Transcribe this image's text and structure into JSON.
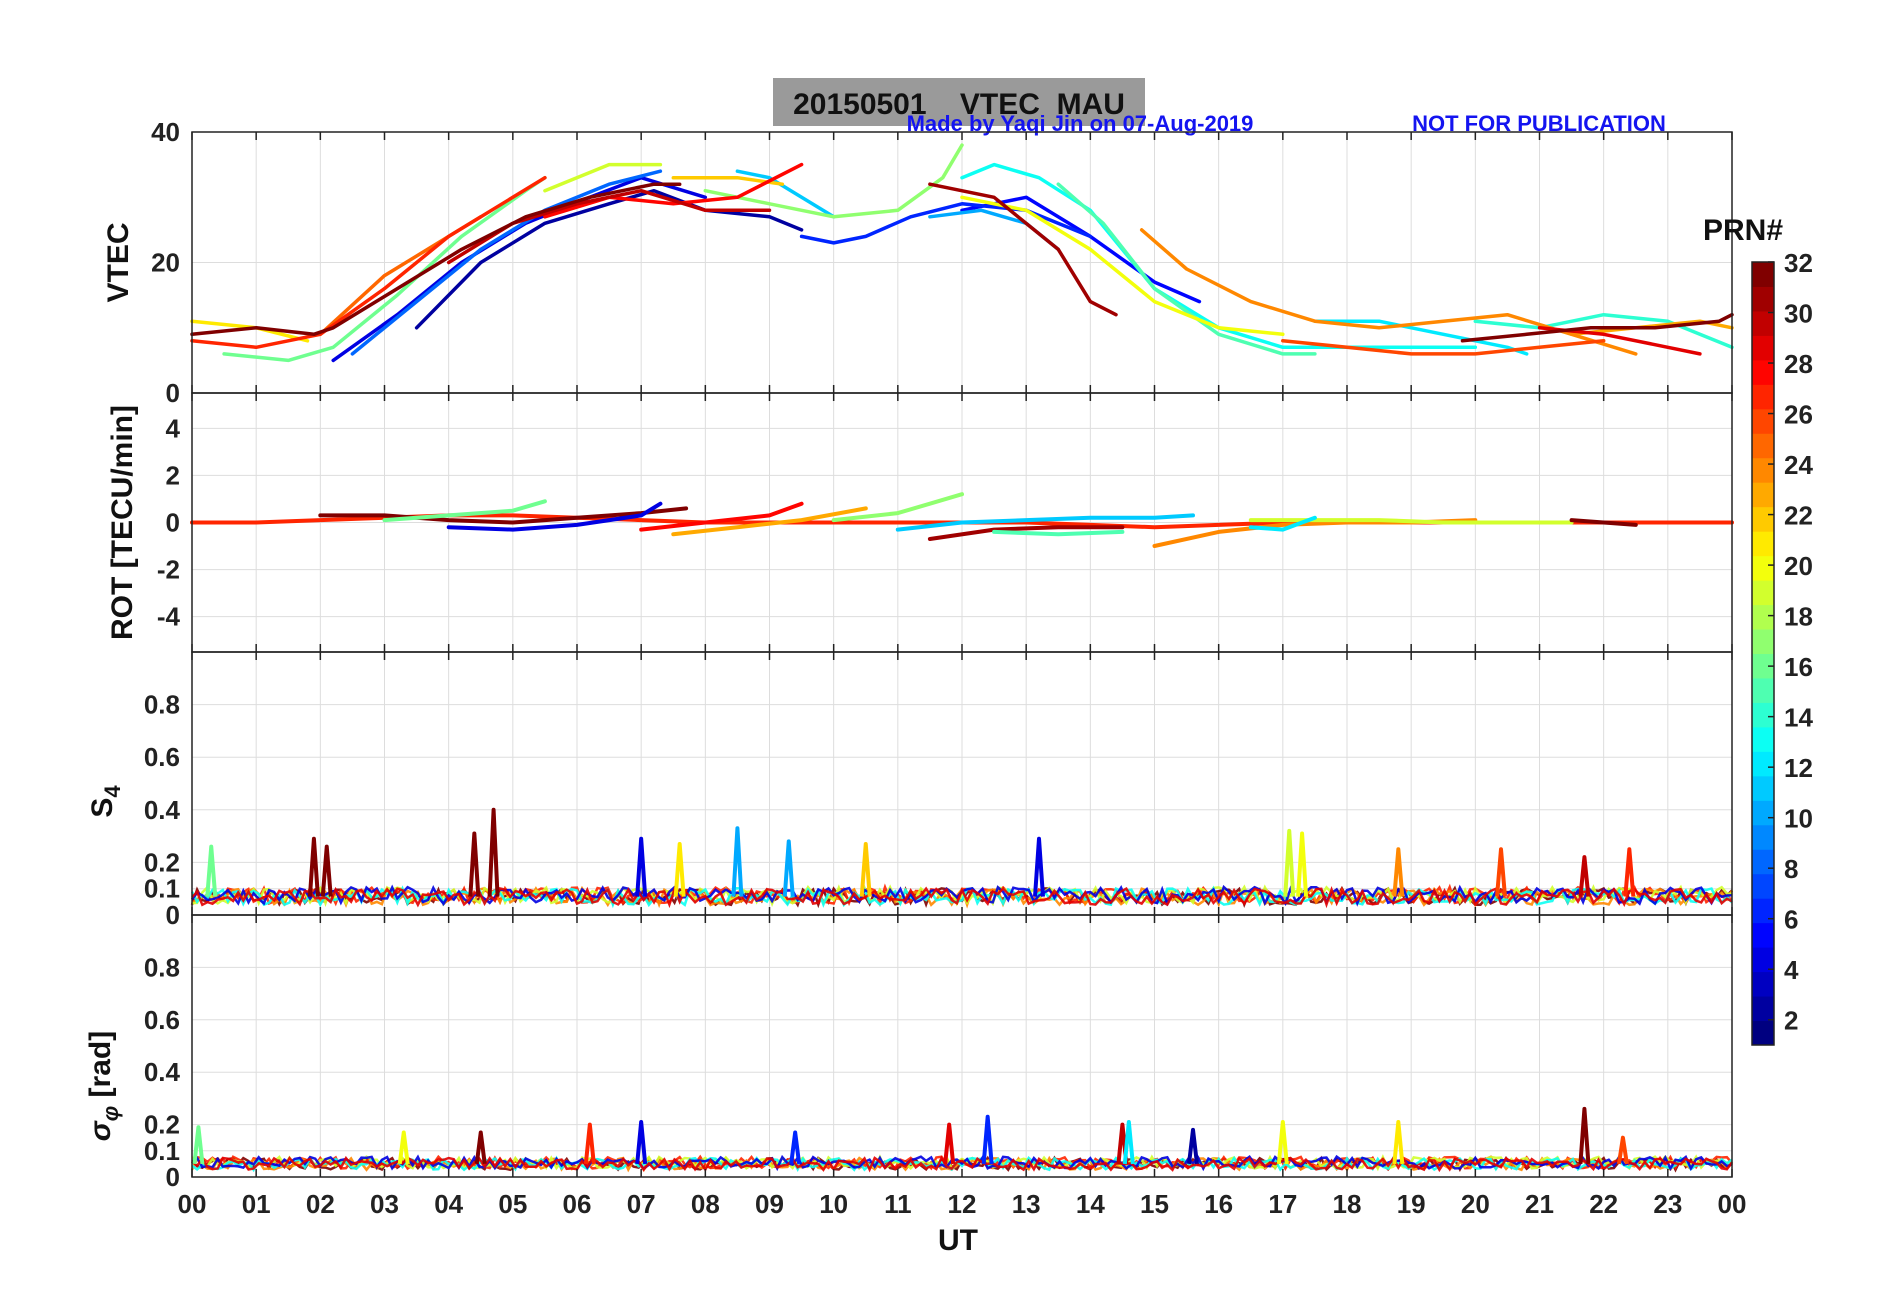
{
  "chart_data": {
    "type": "line",
    "title": "20150501    VTEC  MAU",
    "credit_left": "Made by Yaqi Jin on 07-Aug-2019",
    "credit_right": "NOT FOR PUBLICATION",
    "xlabel": "UT",
    "x_ticks": [
      "00",
      "01",
      "02",
      "03",
      "04",
      "05",
      "06",
      "07",
      "08",
      "09",
      "10",
      "11",
      "12",
      "13",
      "14",
      "15",
      "16",
      "17",
      "18",
      "19",
      "20",
      "21",
      "22",
      "23",
      "00"
    ],
    "xlim": [
      0,
      24
    ],
    "colorbar": {
      "label": "PRN#",
      "range": [
        1,
        32
      ],
      "ticks": [
        "2",
        "4",
        "6",
        "8",
        "10",
        "12",
        "14",
        "16",
        "18",
        "20",
        "22",
        "24",
        "26",
        "28",
        "30",
        "32"
      ],
      "colormap": "jet"
    },
    "panels": [
      {
        "id": "vtec",
        "ylabel": "VTEC",
        "ylim": [
          0,
          40
        ],
        "y_ticks": [
          "0",
          "20",
          "40"
        ],
        "series": [
          {
            "prn": 2,
            "x": [
              3.5,
              4.5,
              5.5,
              6.5,
              7.2,
              8.0,
              9.0,
              9.5
            ],
            "y": [
              10,
              20,
              26,
              29,
              31,
              28,
              27,
              25
            ]
          },
          {
            "prn": 4,
            "x": [
              2.2,
              3.2,
              4.2,
              5.2,
              6.2,
              7.0,
              8.0
            ],
            "y": [
              5,
              12,
              20,
              26,
              30,
              33,
              30
            ]
          },
          {
            "prn": 5,
            "x": [
              12.0,
              13.0,
              14.0,
              15.0,
              15.7
            ],
            "y": [
              28,
              30,
              24,
              17,
              14
            ]
          },
          {
            "prn": 6,
            "x": [
              9.5,
              10.0,
              10.5,
              11.2,
              12.0,
              13.0,
              14.0
            ],
            "y": [
              24,
              23,
              24,
              27,
              29,
              28,
              24
            ]
          },
          {
            "prn": 8,
            "x": [
              2.5,
              3.5,
              4.5,
              5.5,
              6.5,
              7.3
            ],
            "y": [
              6,
              14,
              22,
              28,
              32,
              34
            ]
          },
          {
            "prn": 10,
            "x": [
              11.5,
              12.3,
              13.0,
              13.5
            ],
            "y": [
              27,
              28,
              26,
              22
            ]
          },
          {
            "prn": 11,
            "x": [
              8.5,
              9.0,
              9.5,
              10.0
            ],
            "y": [
              34,
              33,
              30,
              27
            ]
          },
          {
            "prn": 12,
            "x": [
              17.5,
              18.5,
              19.5,
              20.5,
              20.8
            ],
            "y": [
              11,
              11,
              9,
              7,
              6
            ]
          },
          {
            "prn": 13,
            "x": [
              12.0,
              12.5,
              13.2,
              14.0,
              15.0,
              16.0,
              17.0,
              18.0,
              19.0,
              20.0
            ],
            "y": [
              33,
              35,
              33,
              28,
              16,
              10,
              7,
              7,
              7,
              7
            ]
          },
          {
            "prn": 14,
            "x": [
              20.0,
              21.0,
              22.0,
              23.0,
              24.0
            ],
            "y": [
              11,
              10,
              12,
              11,
              7
            ]
          },
          {
            "prn": 15,
            "x": [
              13.5,
              14.2,
              15.0,
              16.0,
              17.0,
              17.5
            ],
            "y": [
              32,
              26,
              16,
              9,
              6,
              6
            ]
          },
          {
            "prn": 16,
            "x": [
              0.5,
              1.5,
              2.2,
              3.2,
              4.2,
              5.2,
              5.5
            ],
            "y": [
              6,
              5,
              7,
              15,
              24,
              31,
              33
            ]
          },
          {
            "prn": 17,
            "x": [
              8.0,
              9.0,
              10.0,
              11.0,
              11.7,
              12.0
            ],
            "y": [
              31,
              29,
              27,
              28,
              33,
              38
            ]
          },
          {
            "prn": 19,
            "x": [
              5.5,
              6.5,
              7.3
            ],
            "y": [
              31,
              35,
              35
            ]
          },
          {
            "prn": 20,
            "x": [
              12.0,
              13.0,
              14.0,
              15.0,
              16.0,
              17.0
            ],
            "y": [
              30,
              28,
              22,
              14,
              10,
              9
            ]
          },
          {
            "prn": 21,
            "x": [
              0.0,
              1.0,
              1.8
            ],
            "y": [
              11,
              10,
              8
            ]
          },
          {
            "prn": 22,
            "x": [
              7.5,
              8.5,
              9.2
            ],
            "y": [
              33,
              33,
              32
            ]
          },
          {
            "prn": 23,
            "x": [
              21.5,
              22.5,
              23.5,
              24.0
            ],
            "y": [
              9,
              10,
              11,
              10
            ]
          },
          {
            "prn": 24,
            "x": [
              14.8,
              15.5,
              16.5,
              17.5,
              18.5,
              19.5,
              20.5,
              21.5,
              22.5
            ],
            "y": [
              25,
              19,
              14,
              11,
              10,
              11,
              12,
              9,
              6
            ]
          },
          {
            "prn": 25,
            "x": [
              2.0,
              3.0,
              4.0,
              4.5
            ],
            "y": [
              9,
              18,
              24,
              27
            ]
          },
          {
            "prn": 26,
            "x": [
              17.0,
              18.0,
              19.0,
              20.0,
              21.0,
              22.0
            ],
            "y": [
              8,
              7,
              6,
              6,
              7,
              8
            ]
          },
          {
            "prn": 27,
            "x": [
              0.0,
              1.0,
              2.0,
              3.0,
              4.0,
              5.0,
              5.5
            ],
            "y": [
              8,
              7,
              9,
              16,
              24,
              30,
              33
            ]
          },
          {
            "prn": 28,
            "x": [
              5.5,
              6.5,
              7.5,
              8.5,
              9.5
            ],
            "y": [
              27,
              30,
              29,
              30,
              35
            ]
          },
          {
            "prn": 29,
            "x": [
              21.0,
              22.0,
              23.0,
              23.5
            ],
            "y": [
              10,
              9,
              7,
              6
            ]
          },
          {
            "prn": 30,
            "x": [
              4.0,
              5.0,
              6.0,
              7.0,
              8.0,
              9.0
            ],
            "y": [
              20,
              26,
              29,
              31,
              28,
              28
            ]
          },
          {
            "prn": 31,
            "x": [
              11.5,
              12.5,
              13.5,
              14.0,
              14.4
            ],
            "y": [
              32,
              30,
              22,
              14,
              12
            ]
          },
          {
            "prn": 32,
            "x": [
              0.0,
              1.0,
              1.9,
              2.2,
              3.2,
              4.2,
              5.2,
              6.2,
              7.2,
              7.6
            ],
            "y": [
              9,
              10,
              9,
              10,
              16,
              22,
              27,
              30,
              32,
              32
            ]
          },
          {
            "prn": 32,
            "x": [
              19.8,
              20.8,
              21.8,
              22.8,
              23.8,
              24.0
            ],
            "y": [
              8,
              9,
              10,
              10,
              11,
              12
            ]
          }
        ]
      },
      {
        "id": "rot",
        "ylabel": "ROT [TECU/min]",
        "ylim": [
          -5.5,
          5.5
        ],
        "y_ticks": [
          "-4",
          "-2",
          "0",
          "2",
          "4"
        ],
        "series": [
          {
            "prn": 27,
            "x": [
              0.0,
              1.0,
              2.0,
              3.0,
              4.0,
              5.0,
              6.0,
              7.0,
              8.0,
              9.0,
              10.0,
              11.0,
              12.0,
              13.0,
              14.0,
              15.0,
              16.0,
              17.0,
              18.0,
              19.0,
              20.0,
              21.0,
              22.0,
              23.0,
              24.0
            ],
            "y": [
              0,
              0,
              0.1,
              0.2,
              0.3,
              0.3,
              0.2,
              0.1,
              0,
              0,
              0,
              0,
              0,
              0,
              -0.1,
              -0.2,
              -0.1,
              0,
              0,
              0,
              0,
              0,
              0,
              0,
              0
            ]
          },
          {
            "prn": 32,
            "x": [
              2.0,
              3.0,
              4.0,
              5.0,
              6.0,
              7.0,
              7.7
            ],
            "y": [
              0.3,
              0.3,
              0.1,
              0,
              0.2,
              0.4,
              0.6
            ]
          },
          {
            "prn": 4,
            "x": [
              4.0,
              5.0,
              6.0,
              7.0,
              7.3
            ],
            "y": [
              -0.2,
              -0.3,
              -0.1,
              0.3,
              0.8
            ]
          },
          {
            "prn": 28,
            "x": [
              7.0,
              8.0,
              9.0,
              9.5
            ],
            "y": [
              -0.3,
              0,
              0.3,
              0.8
            ]
          },
          {
            "prn": 23,
            "x": [
              7.5,
              8.5,
              9.5,
              10.5
            ],
            "y": [
              -0.5,
              -0.2,
              0.1,
              0.6
            ]
          },
          {
            "prn": 17,
            "x": [
              10.0,
              11.0,
              11.5,
              12.0
            ],
            "y": [
              0.1,
              0.4,
              0.8,
              1.2
            ]
          },
          {
            "prn": 11,
            "x": [
              11.0,
              12.0,
              13.0,
              14.0,
              15.0,
              15.6
            ],
            "y": [
              -0.3,
              0,
              0.1,
              0.2,
              0.2,
              0.3
            ]
          },
          {
            "prn": 31,
            "x": [
              11.5,
              12.5,
              13.5,
              14.5
            ],
            "y": [
              -0.7,
              -0.3,
              -0.2,
              -0.2
            ]
          },
          {
            "prn": 15,
            "x": [
              12.5,
              13.5,
              14.5
            ],
            "y": [
              -0.4,
              -0.5,
              -0.4
            ]
          },
          {
            "prn": 24,
            "x": [
              15.0,
              16.0,
              17.0,
              18.0,
              19.0,
              20.0
            ],
            "y": [
              -1.0,
              -0.4,
              -0.1,
              0,
              0,
              0.1
            ]
          },
          {
            "prn": 19,
            "x": [
              16.5,
              17.5,
              18.5,
              19.5,
              20.5,
              21.5
            ],
            "y": [
              0.1,
              0.1,
              0.1,
              0,
              0,
              0
            ]
          },
          {
            "prn": 12,
            "x": [
              16.5,
              17.0,
              17.5
            ],
            "y": [
              -0.2,
              -0.3,
              0.2
            ]
          },
          {
            "prn": 16,
            "x": [
              3.0,
              4.0,
              5.0,
              5.5
            ],
            "y": [
              0.1,
              0.3,
              0.5,
              0.9
            ]
          },
          {
            "prn": 32,
            "x": [
              21.5,
              22.0,
              22.5
            ],
            "y": [
              0.1,
              0,
              -0.1
            ]
          }
        ]
      },
      {
        "id": "s4",
        "ylabel": "S4",
        "ylim": [
          0,
          1
        ],
        "y_ticks": [
          "0",
          "0.1",
          "0.2",
          "0.4",
          "0.6",
          "0.8"
        ],
        "baseline": 0.07,
        "spikes": [
          {
            "prn": 32,
            "x": 1.9,
            "y": 0.29
          },
          {
            "prn": 32,
            "x": 2.1,
            "y": 0.26
          },
          {
            "prn": 32,
            "x": 4.4,
            "y": 0.31
          },
          {
            "prn": 32,
            "x": 4.7,
            "y": 0.4
          },
          {
            "prn": 16,
            "x": 0.3,
            "y": 0.26
          },
          {
            "prn": 4,
            "x": 7.0,
            "y": 0.29
          },
          {
            "prn": 10,
            "x": 8.5,
            "y": 0.33
          },
          {
            "prn": 10,
            "x": 9.3,
            "y": 0.28
          },
          {
            "prn": 21,
            "x": 7.6,
            "y": 0.27
          },
          {
            "prn": 22,
            "x": 10.5,
            "y": 0.27
          },
          {
            "prn": 4,
            "x": 13.2,
            "y": 0.29
          },
          {
            "prn": 19,
            "x": 17.1,
            "y": 0.32
          },
          {
            "prn": 20,
            "x": 17.3,
            "y": 0.31
          },
          {
            "prn": 24,
            "x": 18.8,
            "y": 0.25
          },
          {
            "prn": 26,
            "x": 20.4,
            "y": 0.25
          },
          {
            "prn": 30,
            "x": 21.7,
            "y": 0.22
          },
          {
            "prn": 27,
            "x": 22.4,
            "y": 0.25
          }
        ]
      },
      {
        "id": "sigma_phi",
        "ylabel": "σφ [rad]",
        "ylim": [
          0,
          1
        ],
        "y_ticks": [
          "0",
          "0.1",
          "0.2",
          "0.4",
          "0.6",
          "0.8"
        ],
        "baseline": 0.05,
        "spikes": [
          {
            "prn": 16,
            "x": 0.1,
            "y": 0.19
          },
          {
            "prn": 27,
            "x": 6.2,
            "y": 0.2
          },
          {
            "prn": 4,
            "x": 7.0,
            "y": 0.21
          },
          {
            "prn": 20,
            "x": 3.3,
            "y": 0.17
          },
          {
            "prn": 32,
            "x": 4.5,
            "y": 0.17
          },
          {
            "prn": 6,
            "x": 9.4,
            "y": 0.17
          },
          {
            "prn": 29,
            "x": 11.8,
            "y": 0.2
          },
          {
            "prn": 6,
            "x": 12.4,
            "y": 0.23
          },
          {
            "prn": 30,
            "x": 14.5,
            "y": 0.2
          },
          {
            "prn": 12,
            "x": 14.6,
            "y": 0.21
          },
          {
            "prn": 2,
            "x": 15.6,
            "y": 0.18
          },
          {
            "prn": 20,
            "x": 17.0,
            "y": 0.21
          },
          {
            "prn": 21,
            "x": 18.8,
            "y": 0.21
          },
          {
            "prn": 32,
            "x": 21.7,
            "y": 0.26
          },
          {
            "prn": 26,
            "x": 22.3,
            "y": 0.15
          }
        ]
      }
    ]
  }
}
